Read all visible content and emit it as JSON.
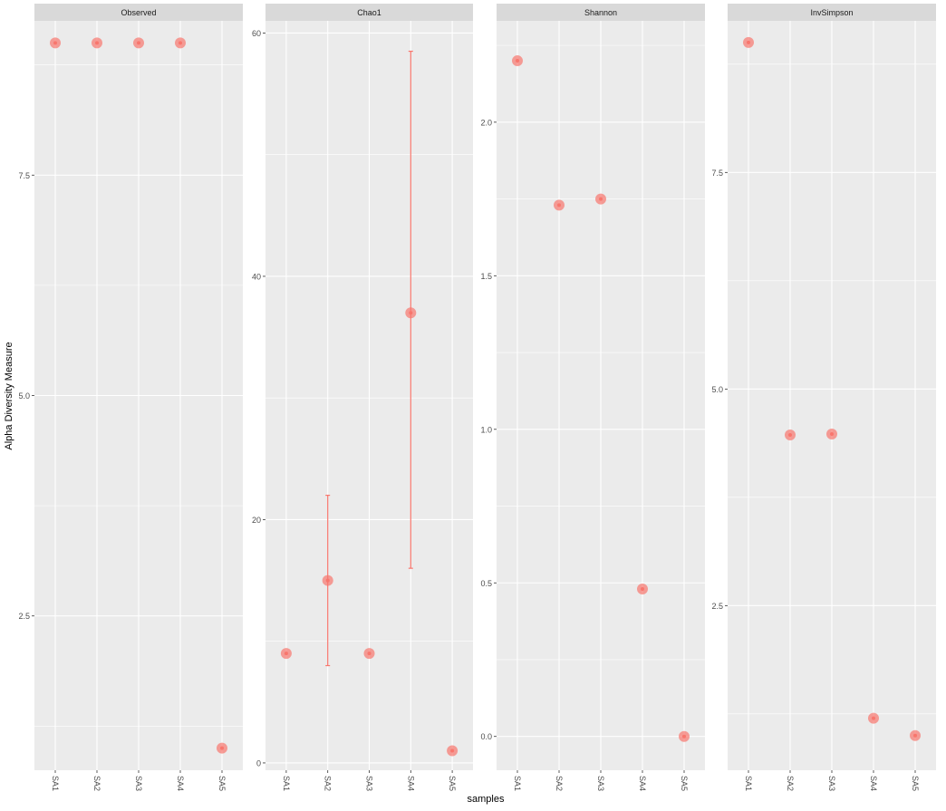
{
  "chart_data": {
    "type": "scatter",
    "xlabel": "samples",
    "ylabel": "Alpha Diversity Measure",
    "categories": [
      "SA1",
      "SA2",
      "SA3",
      "SA4",
      "SA5"
    ],
    "point_color": "#F8766D",
    "panel_bg": "#EBEBEB",
    "strip_bg": "#D9D9D9",
    "grid": true,
    "legend": "none",
    "panels": [
      {
        "name": "Observed",
        "ylim": [
          0.75,
          9.25
        ],
        "yticks": [
          2.5,
          5.0,
          7.5
        ],
        "ytick_labels": [
          "2.5",
          "5.0",
          "7.5"
        ],
        "values": [
          9,
          9,
          9,
          9,
          1
        ]
      },
      {
        "name": "Chao1",
        "ylim": [
          -0.6,
          61.0
        ],
        "yticks": [
          0,
          20,
          40,
          60
        ],
        "ytick_labels": [
          "0",
          "20",
          "40",
          "60"
        ],
        "values": [
          9,
          15,
          9,
          37,
          1
        ],
        "error_low": [
          null,
          8,
          null,
          16,
          null
        ],
        "error_high": [
          null,
          22,
          null,
          58.5,
          null
        ]
      },
      {
        "name": "Shannon",
        "ylim": [
          -0.11,
          2.33
        ],
        "yticks": [
          0.0,
          0.5,
          1.0,
          1.5,
          2.0
        ],
        "ytick_labels": [
          "0.0",
          "0.5",
          "1.0",
          "1.5",
          "2.0"
        ],
        "values": [
          2.2,
          1.73,
          1.75,
          0.48,
          0.0
        ]
      },
      {
        "name": "InvSimpson",
        "ylim": [
          0.6,
          9.25
        ],
        "yticks": [
          2.5,
          5.0,
          7.5
        ],
        "ytick_labels": [
          "2.5",
          "5.0",
          "7.5"
        ],
        "values": [
          9.0,
          4.47,
          4.48,
          1.2,
          1.0
        ]
      }
    ]
  }
}
